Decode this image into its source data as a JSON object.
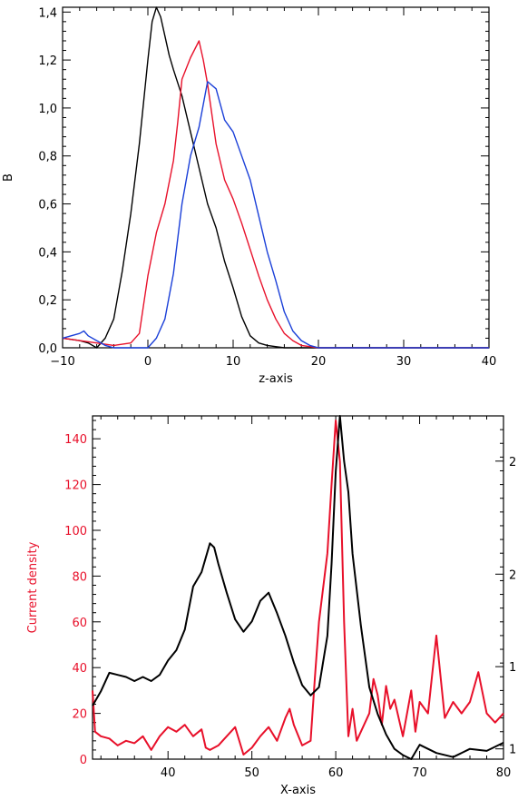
{
  "chart_data": [
    {
      "type": "line",
      "xlabel": "z-axis",
      "ylabel": "B",
      "xlim": [
        -10,
        40
      ],
      "ylim": [
        0,
        1.42
      ],
      "xticks": [
        -10,
        0,
        10,
        20,
        30,
        40
      ],
      "xtick_labels": [
        "−10",
        "0",
        "10",
        "20",
        "30",
        "40"
      ],
      "yticks": [
        0.0,
        0.2,
        0.4,
        0.6,
        0.8,
        1.0,
        1.2,
        1.4
      ],
      "ytick_labels": [
        "0,0",
        "0,2",
        "0,4",
        "0,6",
        "0,8",
        "1,0",
        "1,2",
        "1,4"
      ],
      "grid": false,
      "series": [
        {
          "color": "#000000",
          "x": [
            -10,
            -8,
            -7,
            -6,
            -5,
            -4,
            -3,
            -2,
            -1,
            0,
            0.5,
            1,
            1.5,
            2,
            2.5,
            3,
            4,
            5,
            6,
            7,
            8,
            9,
            10,
            11,
            12,
            13,
            14,
            16,
            18,
            20,
            25,
            40
          ],
          "y": [
            0.04,
            0.03,
            0.02,
            0.0,
            0.04,
            0.12,
            0.32,
            0.56,
            0.85,
            1.2,
            1.36,
            1.42,
            1.38,
            1.3,
            1.22,
            1.16,
            1.05,
            0.9,
            0.75,
            0.6,
            0.5,
            0.36,
            0.25,
            0.13,
            0.05,
            0.02,
            0.01,
            0.0,
            0.0,
            0.0,
            0.0,
            0.0
          ]
        },
        {
          "color": "#e8102a",
          "x": [
            -10,
            -8,
            -6,
            -4,
            -2,
            -1,
            0,
            1,
            2,
            3,
            3.5,
            4,
            5,
            6,
            6.5,
            7,
            8,
            9,
            10,
            11,
            12,
            13,
            14,
            15,
            16,
            17,
            18,
            20,
            25,
            40
          ],
          "y": [
            0.04,
            0.03,
            0.02,
            0.01,
            0.02,
            0.06,
            0.3,
            0.48,
            0.6,
            0.78,
            0.94,
            1.12,
            1.21,
            1.28,
            1.2,
            1.1,
            0.85,
            0.7,
            0.62,
            0.52,
            0.41,
            0.3,
            0.2,
            0.12,
            0.06,
            0.03,
            0.01,
            0.0,
            0.0,
            0.0
          ]
        },
        {
          "color": "#1a3fd8",
          "x": [
            -10,
            -9,
            -8,
            -7.5,
            -7,
            -6,
            -5,
            -4,
            -3,
            -2,
            0,
            1,
            2,
            3,
            4,
            5,
            6,
            7,
            8,
            9,
            10,
            11,
            12,
            13,
            14,
            15,
            16,
            17,
            18,
            19,
            20,
            22,
            25,
            40
          ],
          "y": [
            0.04,
            0.05,
            0.06,
            0.07,
            0.05,
            0.03,
            0.01,
            0.0,
            0.0,
            0.0,
            0.0,
            0.04,
            0.12,
            0.31,
            0.6,
            0.8,
            0.92,
            1.11,
            1.08,
            0.95,
            0.9,
            0.8,
            0.7,
            0.55,
            0.4,
            0.28,
            0.15,
            0.07,
            0.03,
            0.01,
            0.0,
            0.0,
            0.0,
            0.0
          ]
        }
      ]
    },
    {
      "type": "line",
      "xlabel": "X-axis",
      "ylabel": "Current density",
      "ylabel_color": "#e8102a",
      "xlim": [
        31,
        80
      ],
      "ylim": [
        0,
        150
      ],
      "xticks": [
        40,
        50,
        60,
        70,
        80
      ],
      "xtick_labels": [
        "40",
        "50",
        "60",
        "70",
        "80"
      ],
      "yticks": [
        0,
        20,
        40,
        60,
        80,
        100,
        120,
        140
      ],
      "ytick_labels": [
        "0",
        "20",
        "40",
        "60",
        "80",
        "100",
        "120",
        "140"
      ],
      "right_ylim": [
        0.95,
        2.62
      ],
      "right_yticks": [
        1.0,
        1.4,
        1.85,
        2.4
      ],
      "right_ytick_labels": [
        "1",
        "1",
        "2",
        "2"
      ],
      "grid": false,
      "series": [
        {
          "color": "#e8102a",
          "axis": "left",
          "x": [
            31,
            31.3,
            32,
            33,
            34,
            35,
            36,
            37,
            38,
            39,
            40,
            41,
            42,
            43,
            44,
            44.5,
            45,
            46,
            47,
            48,
            49,
            50,
            51,
            52,
            53,
            54,
            54.5,
            55,
            56,
            57,
            57.5,
            58,
            59,
            59.5,
            60,
            60.5,
            61,
            61.5,
            62,
            62.5,
            63,
            64,
            64.5,
            65,
            65.5,
            66,
            66.5,
            67,
            68,
            69,
            69.5,
            70,
            71,
            72,
            73,
            74,
            75,
            76,
            77,
            78,
            79,
            80
          ],
          "y": [
            30,
            12,
            10,
            9,
            6,
            8,
            7,
            10,
            4,
            10,
            14,
            12,
            15,
            10,
            13,
            5,
            4,
            6,
            10,
            14,
            2,
            5,
            10,
            14,
            8,
            18,
            22,
            15,
            6,
            8,
            35,
            60,
            90,
            120,
            148,
            130,
            60,
            10,
            22,
            8,
            12,
            20,
            35,
            28,
            15,
            32,
            22,
            26,
            10,
            30,
            12,
            25,
            20,
            54,
            18,
            25,
            20,
            25,
            38,
            20,
            16,
            20
          ]
        },
        {
          "color": "#000000",
          "axis": "right",
          "x": [
            31,
            32,
            33,
            34,
            35,
            36,
            37,
            38,
            39,
            40,
            41,
            42,
            43,
            44,
            45,
            45.5,
            46,
            47,
            48,
            49,
            50,
            51,
            52,
            53,
            54,
            55,
            56,
            57,
            58,
            59,
            59.5,
            60,
            60.5,
            61,
            61.5,
            62,
            63,
            64,
            65,
            66,
            67,
            68,
            69,
            70,
            72,
            74,
            76,
            78,
            80
          ],
          "y": [
            1.21,
            1.28,
            1.37,
            1.36,
            1.35,
            1.33,
            1.35,
            1.33,
            1.36,
            1.43,
            1.48,
            1.58,
            1.79,
            1.86,
            2.0,
            1.98,
            1.9,
            1.76,
            1.63,
            1.57,
            1.62,
            1.72,
            1.76,
            1.66,
            1.55,
            1.42,
            1.31,
            1.26,
            1.3,
            1.55,
            1.9,
            2.35,
            2.62,
            2.4,
            2.25,
            1.95,
            1.6,
            1.3,
            1.17,
            1.07,
            1.0,
            0.97,
            0.95,
            1.02,
            0.98,
            0.96,
            1.0,
            0.99,
            1.03
          ]
        }
      ]
    }
  ]
}
